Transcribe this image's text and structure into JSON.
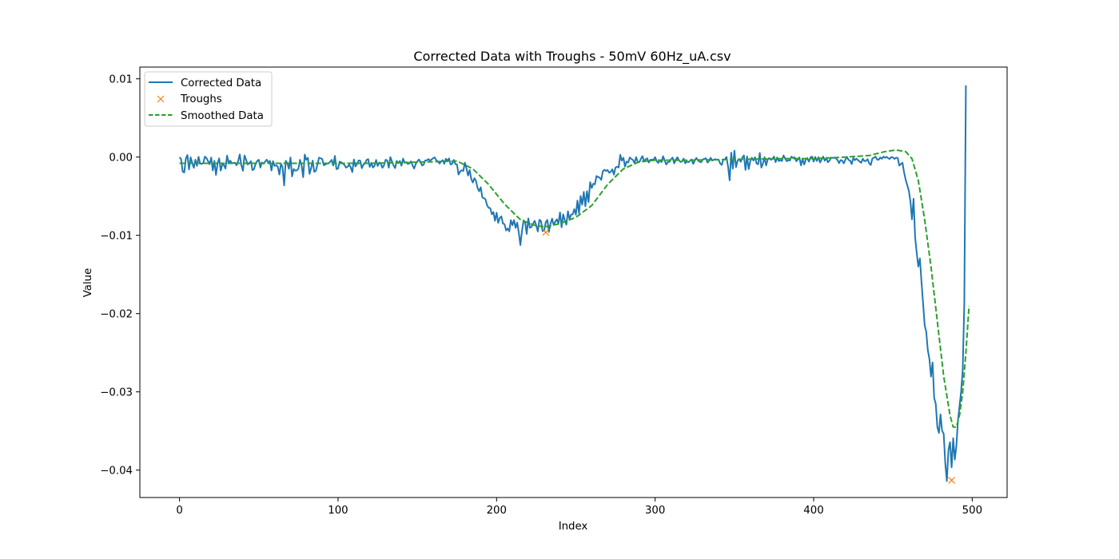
{
  "chart_data": {
    "type": "line",
    "title": "Corrected Data with Troughs - 50mV 60Hz_uA.csv",
    "xlabel": "Index",
    "ylabel": "Value",
    "xlim": [
      -25,
      522
    ],
    "ylim": [
      -0.0435,
      0.0115
    ],
    "xticks": [
      0,
      100,
      200,
      300,
      400,
      500
    ],
    "xtick_labels": [
      "0",
      "100",
      "200",
      "300",
      "400",
      "500"
    ],
    "yticks": [
      0.01,
      0.0,
      -0.01,
      -0.02,
      -0.03,
      -0.04
    ],
    "ytick_labels": [
      "0.01",
      "0.00",
      "−0.01",
      "−0.02",
      "−0.03",
      "−0.04"
    ],
    "grid": false,
    "legend_position": "upper-left",
    "colors": {
      "corrected": "#1f77b4",
      "troughs": "#ff7f0e",
      "smoothed": "#2ca02c"
    },
    "series": [
      {
        "name": "Corrected Data",
        "style": "solid",
        "x_start": 0,
        "x_step": 1,
        "values": [
          -2e-05,
          -0.00027,
          -0.00185,
          -0.00197,
          -0.0002,
          0.00026,
          -0.00158,
          -3e-05,
          -0.00071,
          -0.00137,
          -0.00034,
          -0.00112,
          3e-05,
          -0.00085,
          -0.00085,
          -0.00076,
          6e-05,
          -0.00013,
          -0.00052,
          -0.00091,
          -6e-05,
          -0.0017,
          -0.00048,
          -0.00228,
          -0.00083,
          -0.00017,
          -0.00173,
          -0.00091,
          -0.00103,
          -0.00147,
          0.00019,
          -0.00077,
          -0.00046,
          -0.00078,
          -0.00076,
          -0.00073,
          -0.00105,
          -0.0005,
          0.00034,
          -0.00103,
          -0.00175,
          0.0002,
          -0.00035,
          -0.00094,
          -0.00081,
          -0.00052,
          -0.00167,
          -0.00154,
          -0.00083,
          -0.00051,
          -0.00034,
          -0.00134,
          -0.00069,
          -0.00084,
          -0.00059,
          -0.00033,
          -0.00072,
          -0.00048,
          -0.00171,
          -0.00052,
          -0.00112,
          -0.00105,
          -0.00122,
          -0.00224,
          -0.00086,
          -0.00127,
          -0.00362,
          -0.00048,
          -0.00077,
          -0.00149,
          -5e-05,
          -0.00247,
          -0.00153,
          -0.00173,
          -0.0017,
          -0.00149,
          -0.00035,
          -0.00106,
          -0.00257,
          0.00032,
          -0.00035,
          -0.0001,
          -0.00214,
          -0.00143,
          -0.00045,
          -0.00188,
          -0.00176,
          -0.00093,
          -7e-05,
          -0.00016,
          -0.00024,
          -0.00104,
          -0.00096,
          -0.00081,
          -0.00082,
          -0.0006,
          -0.00035,
          -0.00108,
          0.00015,
          -0.00154,
          -0.00147,
          -0.00058,
          -0.00066,
          -0.00083,
          -0.00099,
          -0.00134,
          -0.00124,
          -0.00098,
          -0.00132,
          -0.00192,
          -0.00031,
          -0.00119,
          -0.00087,
          -0.00043,
          -0.00046,
          -0.00142,
          -0.00095,
          -0.00082,
          -0.00036,
          -0.00026,
          -0.00126,
          -0.00074,
          -0.00134,
          -0.00113,
          -0.00036,
          -0.00114,
          -0.00069,
          -0.00086,
          -0.00137,
          -0.00103,
          -0.00035,
          -0.00042,
          -0.00136,
          -1e-05,
          -0.00054,
          -0.00108,
          -0.00141,
          -0.00049,
          -0.00077,
          -0.0005,
          -0.00111,
          -0.0002,
          -0.00072,
          -0.00067,
          -0.00087,
          -0.00081,
          -0.00055,
          -0.00106,
          -0.00147,
          -0.00086,
          -0.00056,
          -0.00031,
          -0.00061,
          -0.00108,
          -0.00095,
          -0.00043,
          -0.00042,
          -0.00025,
          -0.00047,
          -0.0003,
          -0.00015,
          -4e-05,
          -0.00043,
          -0.00055,
          -0.00083,
          -0.00058,
          -0.00039,
          -0.00086,
          -0.00022,
          -0.00047,
          -0.00017,
          -0.00095,
          -0.00083,
          -0.00036,
          -0.0009,
          -0.00092,
          -0.00223,
          -0.00184,
          -0.00169,
          -0.00177,
          -0.00071,
          -0.00144,
          -0.00236,
          -0.00165,
          -0.00278,
          -0.00325,
          -0.0027,
          -0.00304,
          -0.00395,
          -0.00437,
          -0.00386,
          -0.00516,
          -0.00525,
          -0.00539,
          -0.00616,
          -0.00649,
          -0.00652,
          -0.00731,
          -0.00703,
          -0.00814,
          -0.00711,
          -0.0084,
          -0.00777,
          -0.00758,
          -0.00848,
          -0.00858,
          -0.00938,
          -0.00912,
          -0.00949,
          -0.00806,
          -0.00871,
          -0.00805,
          -0.00904,
          -0.00837,
          -0.00967,
          -0.01124,
          -0.00948,
          -0.00809,
          -0.00836,
          -0.00982,
          -0.00784,
          -0.00903,
          -0.00892,
          -0.00854,
          -0.00815,
          -0.00872,
          -0.00951,
          -0.00801,
          -0.00818,
          -0.00947,
          -0.00937,
          -0.00833,
          -0.00803,
          -0.00957,
          -0.00852,
          -0.00787,
          -0.00866,
          -0.00826,
          -0.00795,
          -0.00851,
          -0.00707,
          -0.00897,
          -0.00732,
          -0.00807,
          -0.00863,
          -0.00693,
          -0.00793,
          -0.00735,
          -0.00732,
          -0.00665,
          -0.00736,
          -0.00556,
          -0.00717,
          -0.00497,
          -0.00609,
          -0.00445,
          -0.00628,
          -0.00436,
          -0.00575,
          -0.00321,
          -0.00395,
          -0.00341,
          -0.00348,
          -0.00242,
          -0.00254,
          -0.00263,
          -0.00291,
          -0.00182,
          -0.00162,
          -0.00178,
          -0.00165,
          -0.00199,
          -0.00188,
          -0.00157,
          -0.00224,
          -0.00134,
          -0.00124,
          -0.00133,
          0.00029,
          -0.00045,
          -9e-05,
          -0.00122,
          -0.00058,
          -0.00069,
          -5e-05,
          -0.00023,
          -0.00037,
          -0.00077,
          -1e-05,
          -0.00061,
          -0.00066,
          -0.00024,
          0.00012,
          -0.00058,
          -0.00028,
          -0.00016,
          -0.00069,
          -0.00035,
          -0.00034,
          -0.00033,
          -1e-05,
          -0.00054,
          -0.00075,
          -0.00039,
          -0.00064,
          0.00011,
          -0.00041,
          -0.00095,
          -0.00065,
          -0.00061,
          -0.00027,
          -7e-05,
          -0.0008,
          -0.00038,
          -2e-05,
          -0.0004,
          -0.00062,
          -0.00056,
          -0.0002,
          -0.00079,
          -0.00054,
          -0.00065,
          -0.00047,
          -0.00031,
          -0.00086,
          -0.00045,
          -0.00011,
          -0.00041,
          -0.00059,
          -0.00066,
          -0.0003,
          -0.00025,
          -0.00015,
          -0.0007,
          -0.00051,
          -9e-05,
          -0.00044,
          -0.00034,
          -0.00027,
          -0.00034,
          -0.00031,
          -0.00081,
          -0.00101,
          -0.00031,
          -0.00029,
          1e-05,
          -0.00122,
          -0.00298,
          0.00057,
          -0.00148,
          0.00082,
          -0.00129,
          -0.00047,
          -0.00024,
          -0.00061,
          -8e-05,
          0.00022,
          -0.00164,
          9e-05,
          -0.00154,
          -0.00052,
          -8e-05,
          -0.00044,
          -2e-05,
          -0.00082,
          -0.00092,
          0.00053,
          -0.00134,
          -0.00082,
          -2e-05,
          -0.00106,
          -0.00031,
          -0.00013,
          -0.00035,
          -0.00022,
          6e-05,
          -0.00065,
          -4e-05,
          -0.00051,
          -0.00039,
          -0.0005,
          0.00021,
          -0.00019,
          -0.00053,
          -0.0004,
          -0.00044,
          6e-05,
          -0.00012,
          -3e-05,
          -0.00053,
          -0.00032,
          -5e-05,
          -0.00106,
          -0.00022,
          -0.00095,
          -0.00035,
          -0.00013,
          -0.00058,
          -3e-05,
          6e-05,
          -0.00057,
          2e-05,
          -0.0005,
          -1e-05,
          -0.00069,
          -0.00032,
          7e-05,
          -0.00046,
          -9e-05,
          -0.00067,
          -0.00044,
          -8e-05,
          -0.0001,
          -9e-05,
          -0.00015,
          -0.00037,
          -0.00077,
          -0.00038,
          -0.00045,
          -0.0008,
          -0.00032,
          2e-05,
          -0.00037,
          -0.00046,
          -0.00089,
          -0.00012,
          -0.00039,
          -0.0002,
          -0.0004,
          -0.00057,
          -0.00072,
          -0.00021,
          -0.00052,
          -0.00048,
          -0.00027,
          -0.0008,
          -0.00101,
          -0.0002,
          -8e-05,
          6e-05,
          -0.00031,
          -0.00034,
          -4e-05,
          -0.00022,
          6e-05,
          -9e-05,
          3e-05,
          -0.00014,
          -0.00024,
          1e-05,
          -6e-05,
          -0.00023,
          -8e-05,
          -0.00012,
          -0.00108,
          -0.00089,
          -0.00073,
          -0.00194,
          -0.00287,
          -0.00358,
          -0.00428,
          -0.00562,
          -0.00796,
          -0.00533,
          -0.01027,
          -0.01227,
          -0.01398,
          -0.01295,
          -0.01594,
          -0.01866,
          -0.02149,
          -0.02232,
          -0.02469,
          -0.0258,
          -0.02804,
          -0.02624,
          -0.03078,
          -0.03152,
          -0.0345,
          -0.03525,
          -0.03289,
          -0.03496,
          -0.03535,
          -0.0391,
          -0.0414,
          -0.03743,
          -0.03643,
          -0.03964,
          -0.03591,
          -0.03865,
          -0.03689,
          -0.03364,
          -0.03182,
          -0.02993,
          -0.02721,
          -0.01875,
          0.00915
        ]
      },
      {
        "name": "Smoothed Data",
        "style": "dashed",
        "points": [
          [
            0,
            -0.0008
          ],
          [
            20,
            -0.0008
          ],
          [
            50,
            -0.0008
          ],
          [
            80,
            -0.0008
          ],
          [
            100,
            -0.0008
          ],
          [
            120,
            -0.0008
          ],
          [
            140,
            -0.0007
          ],
          [
            160,
            -0.0006
          ],
          [
            175,
            -0.0005
          ],
          [
            185,
            -0.0015
          ],
          [
            195,
            -0.0035
          ],
          [
            205,
            -0.006
          ],
          [
            215,
            -0.008
          ],
          [
            225,
            -0.0088
          ],
          [
            231,
            -0.0089
          ],
          [
            240,
            -0.0085
          ],
          [
            250,
            -0.0077
          ],
          [
            260,
            -0.0062
          ],
          [
            270,
            -0.0035
          ],
          [
            280,
            -0.0015
          ],
          [
            290,
            -0.0006
          ],
          [
            300,
            -0.0004
          ],
          [
            320,
            -0.0004
          ],
          [
            350,
            -0.0003
          ],
          [
            380,
            -0.0002
          ],
          [
            400,
            -0.0002
          ],
          [
            420,
            0.0
          ],
          [
            435,
            0.0002
          ],
          [
            445,
            0.0007
          ],
          [
            452,
            0.0009
          ],
          [
            458,
            0.0007
          ],
          [
            462,
            -0.0002
          ],
          [
            466,
            -0.003
          ],
          [
            470,
            -0.008
          ],
          [
            474,
            -0.014
          ],
          [
            478,
            -0.021
          ],
          [
            482,
            -0.028
          ],
          [
            486,
            -0.033
          ],
          [
            488,
            -0.0345
          ],
          [
            490,
            -0.0345
          ],
          [
            492,
            -0.033
          ],
          [
            494,
            -0.03
          ],
          [
            496,
            -0.025
          ],
          [
            498,
            -0.019
          ]
        ]
      },
      {
        "name": "Troughs",
        "style": "marker-x",
        "points": [
          [
            231,
            -0.0096
          ],
          [
            487,
            -0.0413
          ]
        ]
      }
    ]
  }
}
